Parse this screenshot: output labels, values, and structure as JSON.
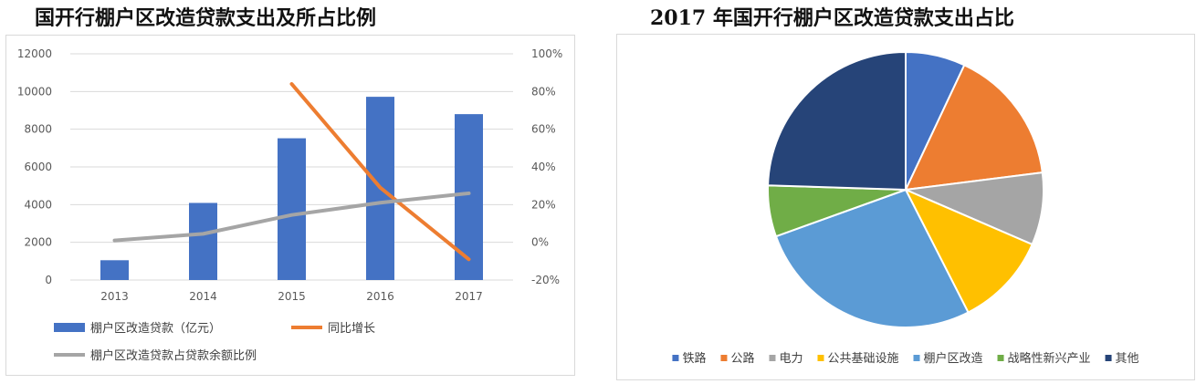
{
  "left_title": "国开行棚户区改造贷款支出及所占比例",
  "right_title": "2017 年国开行棚户区改造贷款支出占比",
  "chart_data": [
    {
      "type": "bar",
      "categories": [
        "2013",
        "2014",
        "2015",
        "2016",
        "2017"
      ],
      "y_ticks": [
        "0",
        "2000",
        "4000",
        "6000",
        "8000",
        "10000",
        "12000"
      ],
      "y2_ticks": [
        "-20%",
        "0%",
        "20%",
        "40%",
        "60%",
        "80%",
        "100%"
      ],
      "ylim": [
        0,
        12000
      ],
      "y2lim": [
        -20,
        100
      ],
      "series": [
        {
          "name": "棚户区改造贷款（亿元）",
          "type": "bar",
          "axis": "left",
          "color": "#4472C4",
          "values": [
            1050,
            4090,
            7520,
            9720,
            8800
          ]
        },
        {
          "name": "同比增长",
          "type": "line",
          "axis": "right",
          "color": "#ED7D31",
          "values": [
            null,
            null,
            84,
            29,
            -9
          ]
        },
        {
          "name": "棚户区改造贷款占贷款余额比例",
          "type": "line",
          "axis": "right",
          "color": "#A5A5A5",
          "values": [
            1,
            4.5,
            14.5,
            21,
            26
          ]
        }
      ],
      "legend_position": "bottom",
      "grid": "horizontal"
    },
    {
      "type": "pie",
      "labels": [
        "铁路",
        "公路",
        "电力",
        "公共基础设施",
        "棚户区改造",
        "战略性新兴产业",
        "其他"
      ],
      "values": [
        7,
        16,
        8.5,
        11,
        27,
        6,
        24.5
      ],
      "colors": [
        "#4472C4",
        "#ED7D31",
        "#A5A5A5",
        "#FFC000",
        "#5B9BD5",
        "#70AD47",
        "#264478"
      ],
      "legend_position": "bottom"
    }
  ]
}
